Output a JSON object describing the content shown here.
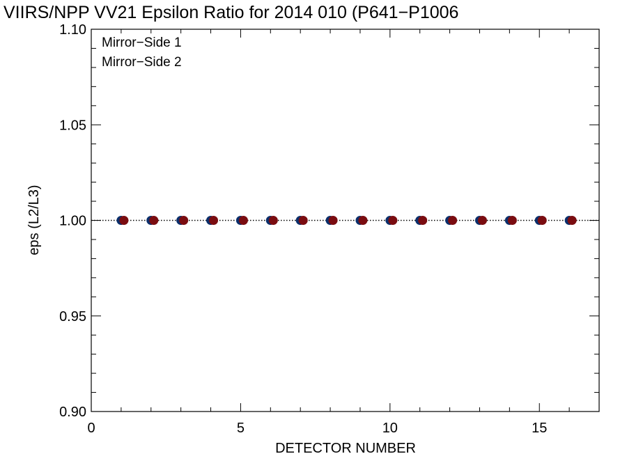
{
  "chart_data": {
    "type": "scatter",
    "title": "VIIRS/NPP VV21 Epsilon Ratio for 2014 010 (P641−P1006",
    "xlabel": "DETECTOR NUMBER",
    "ylabel": "eps (L2/L3)",
    "xlim": [
      0,
      17
    ],
    "ylim": [
      0.9,
      1.1
    ],
    "xticks": [
      0,
      5,
      10,
      15
    ],
    "yticks": [
      0.9,
      0.95,
      1.0,
      1.05,
      1.1
    ],
    "xtick_labels": [
      "0",
      "5",
      "10",
      "15"
    ],
    "ytick_labels": [
      "0.90",
      "0.95",
      "1.00",
      "1.05",
      "1.10"
    ],
    "grid": false,
    "legend": "top-left",
    "reference_line": {
      "y": 1.0,
      "style": "dotted"
    },
    "series": [
      {
        "name": "Mirror−Side 1",
        "color": "#0b2f6b",
        "x": [
          1,
          2,
          3,
          4,
          5,
          6,
          7,
          8,
          9,
          10,
          11,
          12,
          13,
          14,
          15,
          16
        ],
        "y": [
          1.0,
          1.0,
          1.0,
          1.0,
          1.0,
          1.0,
          1.0,
          1.0,
          1.0,
          1.0,
          1.0,
          1.0,
          1.0,
          1.0,
          1.0,
          1.0
        ]
      },
      {
        "name": "Mirror−Side 2",
        "color": "#7a0c10",
        "x": [
          1,
          2,
          3,
          4,
          5,
          6,
          7,
          8,
          9,
          10,
          11,
          12,
          13,
          14,
          15,
          16
        ],
        "y": [
          1.0,
          1.0,
          1.0,
          1.0,
          1.0,
          1.0,
          1.0,
          1.0,
          1.0,
          1.0,
          1.0,
          1.0,
          1.0,
          1.0,
          1.0,
          1.0
        ]
      }
    ]
  }
}
